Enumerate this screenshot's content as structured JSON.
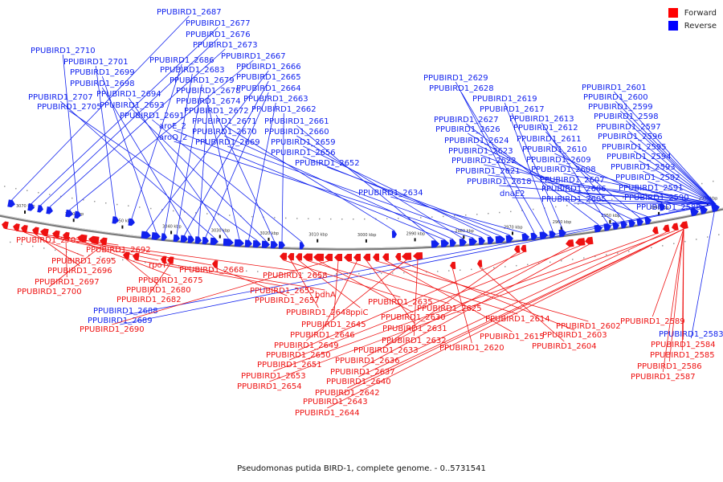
{
  "legend": [
    {
      "label": "Forward",
      "color": "#ff0000"
    },
    {
      "label": "Reverse",
      "color": "#0000ff"
    }
  ],
  "caption": "Pseudomonas putida BIRD-1, complete genome. - 0..5731541",
  "colors": {
    "forward": "#ee1111",
    "reverse": "#1122ee",
    "backbone": "#777777"
  },
  "ticks": [
    "3070 kbp",
    "3060 kbp",
    "3050 kbp",
    "3040 kbp",
    "3030 kbp",
    "3020 kbp",
    "3010 kbp",
    "3000 kbp",
    "2990 kbp",
    "2980 kbp",
    "2970 kbp",
    "2960 kbp",
    "2950 kbp",
    "2940 kbp",
    "2930 kbp"
  ],
  "reverse_labels": [
    "PPUBIRD1_2687",
    "PPUBIRD1_2677",
    "PPUBIRD1_2676",
    "PPUBIRD1_2673",
    "PPUBIRD1_2667",
    "PPUBIRD1_2710",
    "PPUBIRD1_2701",
    "PPUBIRD1_2686",
    "PPUBIRD1_2666",
    "PPUBIRD1_2699",
    "PPUBIRD1_2683",
    "PPUBIRD1_2679",
    "PPUBIRD1_2665",
    "PPUBIRD1_2698",
    "PPUBIRD1_2678",
    "PPUBIRD1_2664",
    "PPUBIRD1_2707",
    "PPUBIRD1_2694",
    "PPUBIRD1_2674",
    "PPUBIRD1_2663",
    "PPUBIRD1_2705",
    "PPUBIRD1_2693",
    "PPUBIRD1_2672",
    "PPUBIRD1_2662",
    "PPUBIRD1_2691",
    "PPUBIRD1_2671",
    "PPUBIRD1_2661",
    "aroE_2",
    "PPUBIRD1_2670",
    "PPUBIRD1_2660",
    "aroQ_2",
    "PPUBIRD1_2669",
    "PPUBIRD1_2659",
    "PPUBIRD1_2656",
    "PPUBIRD1_2652",
    "PPUBIRD1_2634",
    "PPUBIRD1_2629",
    "PPUBIRD1_2628",
    "PPUBIRD1_2619",
    "PPUBIRD1_2617",
    "PPUBIRD1_2627",
    "PPUBIRD1_2613",
    "PPUBIRD1_2626",
    "PPUBIRD1_2612",
    "PPUBIRD1_2624",
    "PPUBIRD1_2611",
    "PPUBIRD1_2623",
    "PPUBIRD1_2610",
    "PPUBIRD1_2622",
    "PPUBIRD1_2609",
    "PPUBIRD1_2621",
    "PPUBIRD1_2608",
    "PPUBIRD1_2618",
    "PPUBIRD1_2607",
    "dnaE2",
    "PPUBIRD1_2606",
    "PPUBIRD1_2605",
    "PPUBIRD1_2601",
    "PPUBIRD1_2600",
    "PPUBIRD1_2599",
    "PPUBIRD1_2598",
    "PPUBIRD1_2597",
    "PPUBIRD1_2596",
    "PPUBIRD1_2595",
    "PPUBIRD1_2594",
    "PPUBIRD1_2593",
    "PPUBIRD1_2592",
    "PPUBIRD1_2591",
    "PPUBIRD1_2590",
    "PPUBIRD1_2588",
    "PPUBIRD1_2688",
    "PPUBIRD1_2689",
    "PPUBIRD1_2583"
  ],
  "forward_labels": [
    "PPUBIRD1_2703",
    "PPUBIRD1_2692",
    "PPUBIRD1_2695",
    "PPUBIRD1_2696",
    "rpoT",
    "PPUBIRD1_2668",
    "PPUBIRD1_2697",
    "PPUBIRD1_2675",
    "PPUBIRD1_2658",
    "PPUBIRD1_2700",
    "PPUBIRD1_2680",
    "PPUBIRD1_2655",
    "bdhA",
    "PPUBIRD1_2682",
    "PPUBIRD1_2657",
    "PPUBIRD1_2635",
    "PPUBIRD1_2648",
    "ppiC",
    "PPUBIRD1_2625",
    "PPUBIRD1_2630",
    "PPUBIRD1_2690",
    "PPUBIRD1_2645",
    "PPUBIRD1_2614",
    "PPUBIRD1_2646",
    "PPUBIRD1_2631",
    "PPUBIRD1_2602",
    "PPUBIRD1_2615",
    "PPUBIRD1_2603",
    "PPUBIRD1_2649",
    "PPUBIRD1_2632",
    "PPUBIRD1_2620",
    "PPUBIRD1_2604",
    "PPUBIRD1_2633",
    "PPUBIRD1_2650",
    "PPUBIRD1_2636",
    "PPUBIRD1_2651",
    "PPUBIRD1_2637",
    "PPUBIRD1_2653",
    "PPUBIRD1_2640",
    "PPUBIRD1_2654",
    "PPUBIRD1_2642",
    "PPUBIRD1_2643",
    "PPUBIRD1_2644",
    "PPUBIRD1_2589",
    "PPUBIRD1_2584",
    "PPUBIRD1_2585",
    "PPUBIRD1_2586",
    "PPUBIRD1_2587"
  ]
}
